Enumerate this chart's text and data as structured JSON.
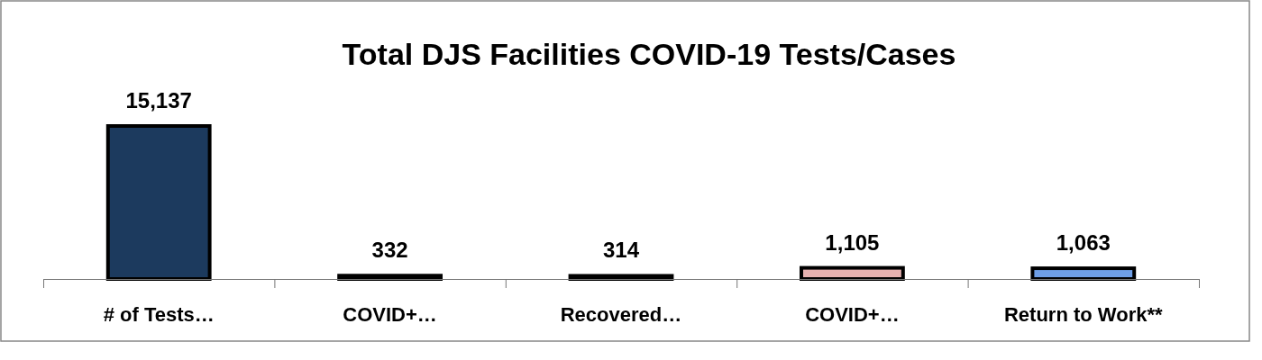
{
  "chart_data": {
    "type": "bar",
    "title": "Total DJS Facilities COVID-19 Tests/Cases",
    "categories": [
      "# of Tests…",
      "COVID+…",
      "Recovered…",
      "COVID+…",
      "Return to Work**"
    ],
    "values": [
      15137,
      332,
      314,
      1105,
      1063
    ],
    "value_labels": [
      "15,137",
      "332",
      "314",
      "1,105",
      "1,063"
    ],
    "colors": [
      "#1c3a5e",
      "#b9c9dc",
      "#a9473f",
      "#e6b1b0",
      "#6f9fe6"
    ]
  }
}
